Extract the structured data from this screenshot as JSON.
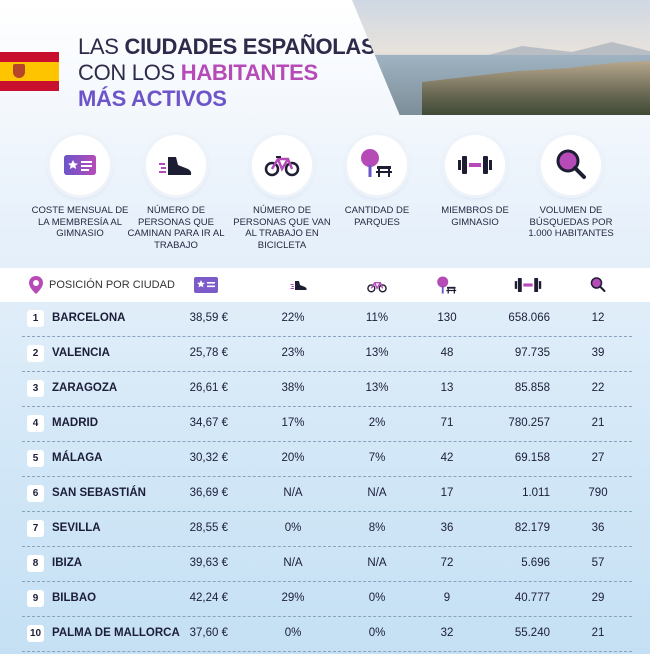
{
  "title": {
    "line1_prefix": "LAS ",
    "line1_bold": "CIUDADES ESPAÑOLAS",
    "line2_prefix": "CON LOS ",
    "line2_accent": "HABITANTES",
    "line3_accent": "MÁS ACTIVOS"
  },
  "colors": {
    "accent_pink": "#b64bb8",
    "accent_purple": "#6d55c9",
    "text_dark": "#1c1d38"
  },
  "categories": [
    {
      "icon": "membership-card-icon",
      "caption": "COSTE MENSUAL DE LA MEMBRESÍA AL GIMNASIO"
    },
    {
      "icon": "walking-shoe-icon",
      "caption": "NÚMERO DE PERSONAS QUE CAMINAN PARA IR AL TRABAJO"
    },
    {
      "icon": "bicycle-icon",
      "caption": "NÚMERO DE PERSONAS QUE VAN AL TRABAJO EN BICICLETA"
    },
    {
      "icon": "park-tree-icon",
      "caption": "CANTIDAD DE PARQUES"
    },
    {
      "icon": "dumbbell-icon",
      "caption": "MIEMBROS DE GIMNASIO"
    },
    {
      "icon": "magnifier-icon",
      "caption": "VOLUMEN DE BÚSQUEDAS POR 1.000 HABITANTES"
    }
  ],
  "table": {
    "header_label": "POSICIÓN POR CIUDAD",
    "rows": [
      {
        "rank": "1",
        "city": "BARCELONA",
        "cost": "38,59 €",
        "walk": "22%",
        "bike": "11%",
        "parks": "130",
        "gym": "658.066",
        "search": "12"
      },
      {
        "rank": "2",
        "city": "VALENCIA",
        "cost": "25,78 €",
        "walk": "23%",
        "bike": "13%",
        "parks": "48",
        "gym": "97.735",
        "search": "39"
      },
      {
        "rank": "3",
        "city": "ZARAGOZA",
        "cost": "26,61 €",
        "walk": "38%",
        "bike": "13%",
        "parks": "13",
        "gym": "85.858",
        "search": "22"
      },
      {
        "rank": "4",
        "city": "MADRID",
        "cost": "34,67 €",
        "walk": "17%",
        "bike": "2%",
        "parks": "71",
        "gym": "780.257",
        "search": "21"
      },
      {
        "rank": "5",
        "city": "MÁLAGA",
        "cost": "30,32 €",
        "walk": "20%",
        "bike": "7%",
        "parks": "42",
        "gym": "69.158",
        "search": "27"
      },
      {
        "rank": "6",
        "city": "SAN SEBASTIÁN",
        "cost": "36,69 €",
        "walk": "N/A",
        "bike": "N/A",
        "parks": "17",
        "gym": "1.011",
        "search": "790"
      },
      {
        "rank": "7",
        "city": "SEVILLA",
        "cost": "28,55 €",
        "walk": "0%",
        "bike": "8%",
        "parks": "36",
        "gym": "82.179",
        "search": "36"
      },
      {
        "rank": "8",
        "city": "IBIZA",
        "cost": "39,63 €",
        "walk": "N/A",
        "bike": "N/A",
        "parks": "72",
        "gym": "5.696",
        "search": "57"
      },
      {
        "rank": "9",
        "city": "BILBAO",
        "cost": "42,24 €",
        "walk": "29%",
        "bike": "0%",
        "parks": "9",
        "gym": "40.777",
        "search": "29"
      },
      {
        "rank": "10",
        "city": "PALMA DE MALLORCA",
        "cost": "37,60 €",
        "walk": "0%",
        "bike": "0%",
        "parks": "32",
        "gym": "55.240",
        "search": "21"
      }
    ]
  }
}
